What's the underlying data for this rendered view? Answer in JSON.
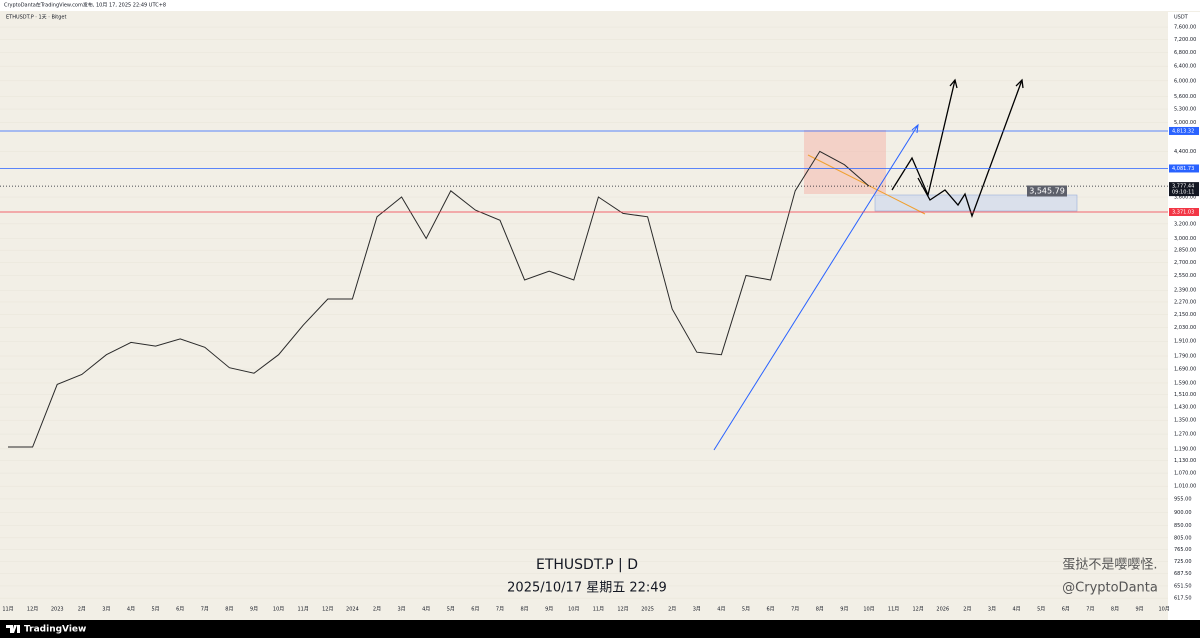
{
  "header": {
    "publisher": "CryptoDanta在TradingView.com发布, 10月 17, 2025 22:49 UTC+8",
    "symbol": "ETHUSDT.P · 1天 · Bitget",
    "watermark_symbol": "ETHUSDT.P | D",
    "watermark_time": "2025/10/17 星期五 22:49",
    "author_name": "蛋挞不是嘤嘤怪.",
    "author_handle": "@CryptoDanta",
    "brand": "TradingView"
  },
  "chart_data": {
    "type": "line",
    "currency": "USDT",
    "log_scale": true,
    "color": "#2a2a2a",
    "categories": [
      "11月",
      "12月",
      "2023",
      "2月",
      "3月",
      "4月",
      "5月",
      "6月",
      "7月",
      "8月",
      "9月",
      "10月",
      "11月",
      "12月",
      "2024",
      "2月",
      "3月",
      "4月",
      "5月",
      "6月",
      "7月",
      "8月",
      "9月",
      "10月",
      "11月",
      "12月",
      "2025",
      "2月",
      "3月",
      "4月",
      "5月",
      "6月",
      "7月",
      "8月",
      "9月",
      "10月",
      "11月",
      "12月",
      "2026",
      "2月",
      "3月",
      "4月",
      "5月",
      "6月",
      "7月",
      "8月",
      "9月",
      "10月"
    ],
    "values": [
      1200,
      1200,
      1580,
      1650,
      1800,
      1900,
      1870,
      1930,
      1860,
      1700,
      1660,
      1800,
      2050,
      2300,
      2300,
      3300,
      3600,
      3000,
      3700,
      3400,
      3250,
      2500,
      2600,
      2500,
      3600,
      3350,
      3300,
      2200,
      1820,
      1800,
      2550,
      2500,
      3700,
      4400,
      4150,
      3777.44,
      null,
      null,
      null,
      null,
      null,
      null,
      null,
      null,
      null,
      null,
      null,
      null
    ],
    "ylim": [
      581,
      8120
    ],
    "yticks": [
      {
        "value": 7600,
        "label": "7,600.00"
      },
      {
        "value": 7200,
        "label": "7,200.00"
      },
      {
        "value": 6800,
        "label": "6,800.00"
      },
      {
        "value": 6400,
        "label": "6,400.00"
      },
      {
        "value": 6000,
        "label": "6,000.00"
      },
      {
        "value": 5600,
        "label": "5,600.00"
      },
      {
        "value": 5300,
        "label": "5,300.00"
      },
      {
        "value": 5000,
        "label": "5,000.00"
      },
      {
        "value": 4400,
        "label": "4,400.00"
      },
      {
        "value": 3600,
        "label": "3,600.00"
      },
      {
        "value": 3200,
        "label": "3,200.00"
      },
      {
        "value": 3000,
        "label": "3,000.00"
      },
      {
        "value": 2850,
        "label": "2,850.00"
      },
      {
        "value": 2700,
        "label": "2,700.00"
      },
      {
        "value": 2550,
        "label": "2,550.00"
      },
      {
        "value": 2390,
        "label": "2,390.00"
      },
      {
        "value": 2270,
        "label": "2,270.00"
      },
      {
        "value": 2150,
        "label": "2,150.00"
      },
      {
        "value": 2030,
        "label": "2,030.00"
      },
      {
        "value": 1910,
        "label": "1,910.00"
      },
      {
        "value": 1790,
        "label": "1,790.00"
      },
      {
        "value": 1690,
        "label": "1,690.00"
      },
      {
        "value": 1590,
        "label": "1,590.00"
      },
      {
        "value": 1510,
        "label": "1,510.00"
      },
      {
        "value": 1430,
        "label": "1,430.00"
      },
      {
        "value": 1350,
        "label": "1,350.00"
      },
      {
        "value": 1270,
        "label": "1,270.00"
      },
      {
        "value": 1190,
        "label": "1,190.00"
      },
      {
        "value": 1130,
        "label": "1,130.00"
      },
      {
        "value": 1070,
        "label": "1,070.00"
      },
      {
        "value": 1010,
        "label": "1,010.00"
      },
      {
        "value": 955,
        "label": "955.00"
      },
      {
        "value": 900,
        "label": "900.00"
      },
      {
        "value": 850,
        "label": "850.00"
      },
      {
        "value": 805,
        "label": "805.00"
      },
      {
        "value": 765,
        "label": "765.00"
      },
      {
        "value": 725,
        "label": "725.00"
      },
      {
        "value": 687.5,
        "label": "687.50"
      },
      {
        "value": 651.5,
        "label": "651.50"
      },
      {
        "value": 617.5,
        "label": "617.50"
      }
    ],
    "price_lines": [
      {
        "value": 4813.32,
        "label": "4,813.32",
        "color": "#2962ff"
      },
      {
        "value": 4081.73,
        "label": "4,081.73",
        "color": "#2962ff"
      },
      {
        "value": 3777.44,
        "label": "3,777.44",
        "color": "#131722",
        "countdown": "09:10:11"
      },
      {
        "value": 3371.03,
        "label": "3,371.03",
        "color": "#f23645"
      }
    ],
    "annotation": {
      "value": 3545.79,
      "label": "3,545.79"
    }
  }
}
